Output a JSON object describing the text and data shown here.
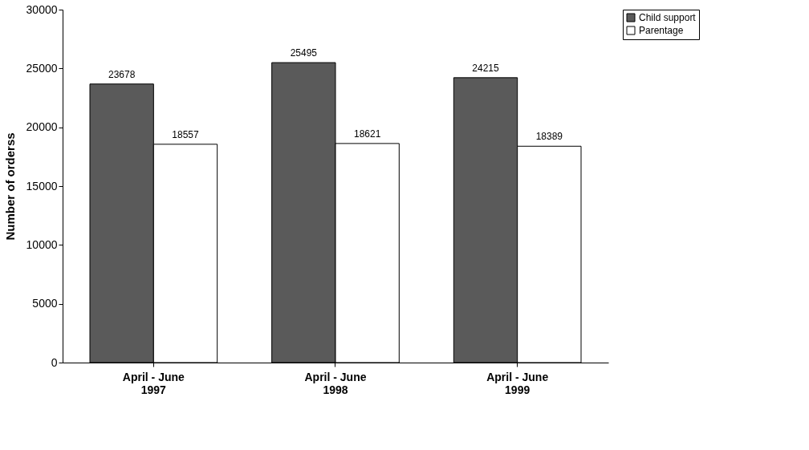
{
  "chart_data": {
    "type": "bar",
    "ylabel": "Number of orderss",
    "categories": [
      "April - June\n1997",
      "April - June\n1998",
      "April - June\n1999"
    ],
    "series": [
      {
        "name": "Child support",
        "color": "#5a5a5a",
        "values": [
          23678,
          25495,
          24215
        ]
      },
      {
        "name": "Parentage",
        "color": "#ffffff",
        "values": [
          18557,
          18621,
          18389
        ]
      }
    ],
    "ylim": [
      0,
      30000
    ],
    "yticks": [
      0,
      5000,
      10000,
      15000,
      20000,
      25000,
      30000
    ],
    "data_labels": true,
    "grid": false,
    "legend": "right"
  }
}
